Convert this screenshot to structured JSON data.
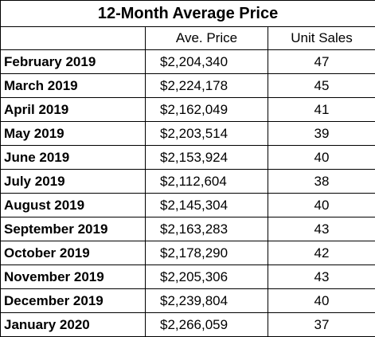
{
  "table": {
    "title": "12-Month Average Price",
    "headers": [
      "",
      "Ave. Price",
      "Unit Sales"
    ],
    "rows": [
      [
        "February 2019",
        "$2,204,340",
        "47"
      ],
      [
        "March 2019",
        "$2,224,178",
        "45"
      ],
      [
        "April 2019",
        "$2,162,049",
        "41"
      ],
      [
        "May 2019",
        "$2,203,514",
        "39"
      ],
      [
        "June 2019",
        "$2,153,924",
        "40"
      ],
      [
        "July 2019",
        "$2,112,604",
        "38"
      ],
      [
        "August 2019",
        "$2,145,304",
        "40"
      ],
      [
        "September 2019",
        "$2,163,283",
        "43"
      ],
      [
        "October 2019",
        "$2,178,290",
        "42"
      ],
      [
        "November 2019",
        "$2,205,306",
        "43"
      ],
      [
        "December 2019",
        "$2,239,804",
        "40"
      ],
      [
        "January 2020",
        "$2,266,059",
        "37"
      ]
    ]
  }
}
